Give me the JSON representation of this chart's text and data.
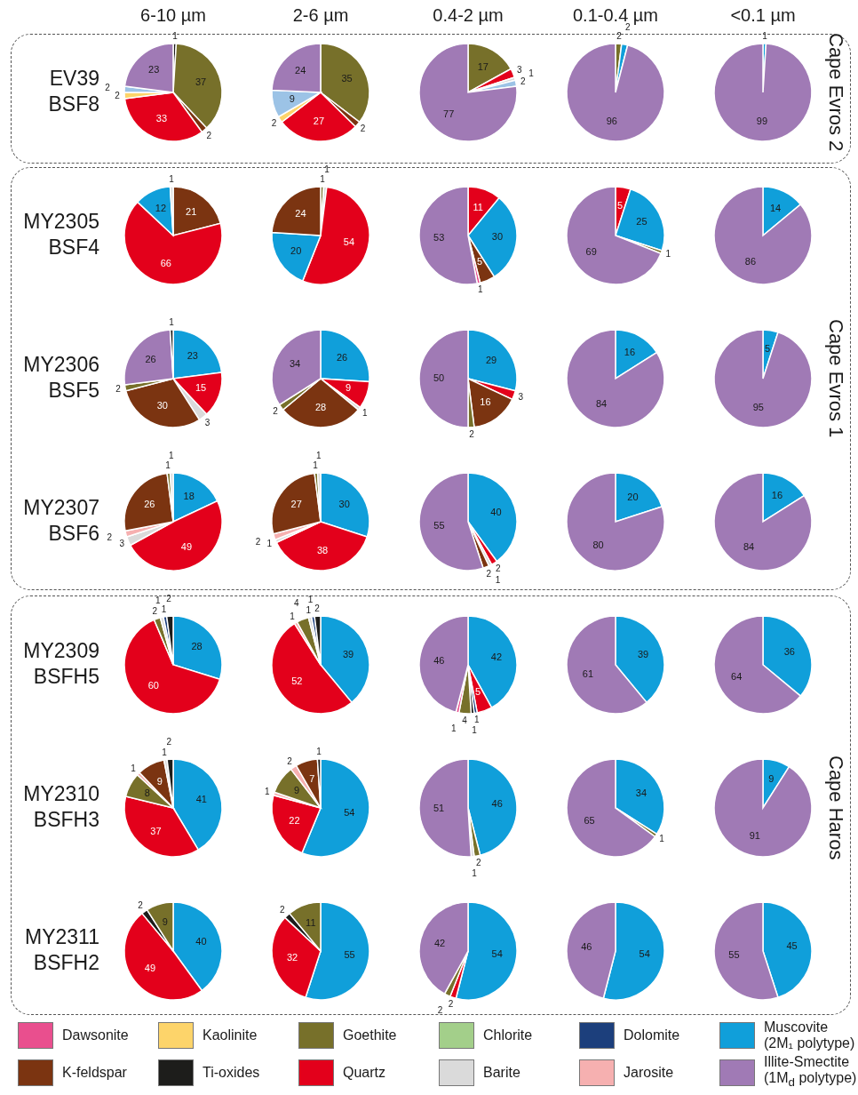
{
  "chart_data": [
    {
      "type": "pie",
      "title": "6-10 µm",
      "ylabel": "EV39\nBSF8",
      "data_labels": true,
      "categories": [
        null,
        null,
        null,
        null,
        null,
        null,
        null
      ],
      "values": [
        1,
        37,
        2,
        33,
        2,
        2,
        23
      ],
      "colors": [
        "#1d1d1b",
        "#77702a",
        "#7b3411",
        "#e3001b",
        "#fdd46a",
        "#9cc3e6",
        "#a07ab5"
      ]
    },
    {
      "type": "pie",
      "title": "2-6 µm",
      "data_labels": true,
      "categories": [
        null,
        null,
        null,
        null,
        null,
        null
      ],
      "values": [
        35,
        2,
        27,
        2,
        9,
        24
      ],
      "colors": [
        "#77702a",
        "#7b3411",
        "#e3001b",
        "#fdd46a",
        "#9cc3e6",
        "#a07ab5"
      ]
    },
    {
      "type": "pie",
      "title": "0.4-2 µm",
      "data_labels": true,
      "categories": [
        null,
        null,
        null,
        null,
        null
      ],
      "values": [
        17,
        3,
        1,
        2,
        77
      ],
      "colors": [
        "#77702a",
        "#e3001b",
        "#dadada",
        "#9cc3e6",
        "#a07ab5"
      ]
    },
    {
      "type": "pie",
      "title": "0.1-0.4 µm",
      "data_labels": true,
      "categories": [
        null,
        null,
        null
      ],
      "values": [
        2,
        2,
        96
      ],
      "colors": [
        "#77702a",
        "#109fda",
        "#a07ab5"
      ]
    },
    {
      "type": "pie",
      "title": "<0.1 µm",
      "annotations": [
        "Cape Evros 2"
      ],
      "data_labels": true,
      "categories": [
        null,
        null
      ],
      "values": [
        1,
        99
      ],
      "colors": [
        "#109fda",
        "#a07ab5"
      ]
    },
    {
      "type": "pie",
      "ylabel": "MY2305\nBSF4",
      "data_labels": true,
      "categories": [
        null,
        null,
        null,
        null
      ],
      "values": [
        21,
        66,
        12,
        1
      ],
      "colors": [
        "#7b3411",
        "#e3001b",
        "#109fda",
        "#dadada"
      ]
    },
    {
      "type": "pie",
      "data_labels": true,
      "categories": [
        null,
        null,
        null,
        null,
        null
      ],
      "values": [
        1,
        1,
        54,
        20,
        24
      ],
      "colors": [
        "#77702a",
        "#dadada",
        "#e3001b",
        "#109fda",
        "#7b3411"
      ]
    },
    {
      "type": "pie",
      "data_labels": true,
      "categories": [
        null,
        null,
        null,
        null,
        null
      ],
      "values": [
        11,
        30,
        5,
        1,
        53
      ],
      "colors": [
        "#e3001b",
        "#109fda",
        "#7b3411",
        "#e94f8e",
        "#a07ab5"
      ]
    },
    {
      "type": "pie",
      "data_labels": true,
      "categories": [
        null,
        null,
        null,
        null
      ],
      "values": [
        5,
        25,
        1,
        69
      ],
      "colors": [
        "#e3001b",
        "#109fda",
        "#77702a",
        "#a07ab5"
      ]
    },
    {
      "type": "pie",
      "data_labels": true,
      "categories": [
        null,
        null
      ],
      "values": [
        14,
        86
      ],
      "colors": [
        "#109fda",
        "#a07ab5"
      ]
    },
    {
      "type": "pie",
      "ylabel": "MY2306\nBSF5",
      "data_labels": true,
      "categories": [
        null,
        null,
        null,
        null,
        null,
        null,
        null
      ],
      "values": [
        23,
        15,
        3,
        30,
        2,
        26,
        1
      ],
      "colors": [
        "#109fda",
        "#e3001b",
        "#dadada",
        "#7b3411",
        "#77702a",
        "#a07ab5",
        "#1d1d1b"
      ]
    },
    {
      "type": "pie",
      "data_labels": true,
      "categories": [
        null,
        null,
        null,
        null,
        null,
        null
      ],
      "values": [
        26,
        9,
        1,
        28,
        2,
        34
      ],
      "colors": [
        "#109fda",
        "#e3001b",
        "#dadada",
        "#7b3411",
        "#77702a",
        "#a07ab5"
      ]
    },
    {
      "type": "pie",
      "data_labels": true,
      "categories": [
        null,
        null,
        null,
        null,
        null
      ],
      "values": [
        29,
        3,
        16,
        2,
        50
      ],
      "colors": [
        "#109fda",
        "#e3001b",
        "#7b3411",
        "#77702a",
        "#a07ab5"
      ]
    },
    {
      "type": "pie",
      "data_labels": true,
      "categories": [
        null,
        null
      ],
      "values": [
        16,
        84
      ],
      "colors": [
        "#109fda",
        "#a07ab5"
      ]
    },
    {
      "type": "pie",
      "annotations": [
        "Cape Evros 1"
      ],
      "data_labels": true,
      "categories": [
        null,
        null
      ],
      "values": [
        5,
        95
      ],
      "colors": [
        "#109fda",
        "#a07ab5"
      ]
    },
    {
      "type": "pie",
      "ylabel": "MY2307\nBSF6",
      "data_labels": true,
      "categories": [
        null,
        null,
        null,
        null,
        null,
        null,
        null
      ],
      "values": [
        18,
        49,
        3,
        2,
        26,
        1,
        1
      ],
      "colors": [
        "#109fda",
        "#e3001b",
        "#dadada",
        "#f6b0b0",
        "#7b3411",
        "#77702a",
        "#dadada"
      ]
    },
    {
      "type": "pie",
      "data_labels": true,
      "categories": [
        null,
        null,
        null,
        null,
        null,
        null,
        null
      ],
      "values": [
        30,
        38,
        1,
        2,
        27,
        1,
        1
      ],
      "colors": [
        "#109fda",
        "#e3001b",
        "#dadada",
        "#f6b0b0",
        "#7b3411",
        "#77702a",
        "#dadada"
      ]
    },
    {
      "type": "pie",
      "data_labels": true,
      "categories": [
        null,
        null,
        null,
        null,
        null
      ],
      "values": [
        40,
        2,
        1,
        2,
        55
      ],
      "colors": [
        "#109fda",
        "#e3001b",
        "#dadada",
        "#7b3411",
        "#a07ab5"
      ]
    },
    {
      "type": "pie",
      "data_labels": true,
      "categories": [
        null,
        null
      ],
      "values": [
        20,
        80
      ],
      "colors": [
        "#109fda",
        "#a07ab5"
      ]
    },
    {
      "type": "pie",
      "data_labels": true,
      "categories": [
        null,
        null
      ],
      "values": [
        16,
        84
      ],
      "colors": [
        "#109fda",
        "#a07ab5"
      ]
    },
    {
      "type": "pie",
      "ylabel": "MY2309\nBSFH5",
      "data_labels": true,
      "categories": [
        null,
        null,
        null,
        null,
        null,
        null
      ],
      "values": [
        28,
        60,
        2,
        1,
        1,
        2
      ],
      "colors": [
        "#109fda",
        "#e3001b",
        "#77702a",
        "#dadada",
        "#1c3f7c",
        "#1d1d1b"
      ]
    },
    {
      "type": "pie",
      "data_labels": true,
      "categories": [
        null,
        null,
        null,
        null,
        null,
        null,
        null
      ],
      "values": [
        39,
        52,
        1,
        4,
        1,
        1,
        2
      ],
      "colors": [
        "#109fda",
        "#e3001b",
        "#f6b0b0",
        "#77702a",
        "#dadada",
        "#1c3f7c",
        "#1d1d1b"
      ]
    },
    {
      "type": "pie",
      "data_labels": true,
      "categories": [
        null,
        null,
        null,
        null,
        null,
        null,
        null
      ],
      "values": [
        42,
        5,
        1,
        1,
        4,
        1,
        46
      ],
      "colors": [
        "#109fda",
        "#e3001b",
        "#1c3f7c",
        "#1d1d1b",
        "#77702a",
        "#e94f8e",
        "#a07ab5"
      ]
    },
    {
      "type": "pie",
      "data_labels": true,
      "categories": [
        null,
        null
      ],
      "values": [
        39,
        61
      ],
      "colors": [
        "#109fda",
        "#a07ab5"
      ]
    },
    {
      "type": "pie",
      "data_labels": true,
      "categories": [
        null,
        null
      ],
      "values": [
        36,
        64
      ],
      "colors": [
        "#109fda",
        "#a07ab5"
      ]
    },
    {
      "type": "pie",
      "ylabel": "MY2310\nBSFH3",
      "data_labels": true,
      "categories": [
        null,
        null,
        null,
        null,
        null,
        null,
        null
      ],
      "values": [
        41,
        37,
        8,
        1,
        9,
        1,
        2
      ],
      "colors": [
        "#109fda",
        "#e3001b",
        "#77702a",
        "#f6b0b0",
        "#7b3411",
        "#dadada",
        "#1d1d1b"
      ]
    },
    {
      "type": "pie",
      "data_labels": true,
      "categories": [
        null,
        null,
        null,
        null,
        null,
        null,
        null
      ],
      "values": [
        54,
        22,
        1,
        9,
        2,
        7,
        1
      ],
      "colors": [
        "#109fda",
        "#e3001b",
        "#f6b0b0",
        "#77702a",
        "#f6b0b0",
        "#7b3411",
        "#1d1d1b"
      ]
    },
    {
      "type": "pie",
      "data_labels": true,
      "categories": [
        null,
        null,
        null,
        null
      ],
      "values": [
        46,
        2,
        1,
        51
      ],
      "colors": [
        "#109fda",
        "#77702a",
        "#dadada",
        "#a07ab5"
      ]
    },
    {
      "type": "pie",
      "data_labels": true,
      "categories": [
        null,
        null,
        null
      ],
      "values": [
        34,
        1,
        65
      ],
      "colors": [
        "#109fda",
        "#77702a",
        "#a07ab5"
      ]
    },
    {
      "type": "pie",
      "annotations": [
        "Cape Haros"
      ],
      "data_labels": true,
      "categories": [
        null,
        null
      ],
      "values": [
        9,
        91
      ],
      "colors": [
        "#109fda",
        "#a07ab5"
      ]
    },
    {
      "type": "pie",
      "ylabel": "MY2311\nBSFH2",
      "data_labels": true,
      "categories": [
        null,
        null,
        null,
        null
      ],
      "values": [
        40,
        49,
        2,
        9
      ],
      "colors": [
        "#109fda",
        "#e3001b",
        "#1d1d1b",
        "#77702a"
      ]
    },
    {
      "type": "pie",
      "data_labels": true,
      "categories": [
        null,
        null,
        null,
        null
      ],
      "values": [
        55,
        32,
        2,
        11
      ],
      "colors": [
        "#109fda",
        "#e3001b",
        "#1d1d1b",
        "#77702a"
      ]
    },
    {
      "type": "pie",
      "data_labels": true,
      "categories": [
        null,
        null,
        null,
        null
      ],
      "values": [
        54,
        2,
        2,
        42
      ],
      "colors": [
        "#109fda",
        "#e3001b",
        "#77702a",
        "#a07ab5"
      ]
    },
    {
      "type": "pie",
      "data_labels": true,
      "categories": [
        null,
        null
      ],
      "values": [
        54,
        46
      ],
      "colors": [
        "#109fda",
        "#a07ab5"
      ]
    },
    {
      "type": "pie",
      "data_labels": true,
      "categories": [
        null,
        null
      ],
      "values": [
        45,
        55
      ],
      "colors": [
        "#109fda",
        "#a07ab5"
      ]
    },
    {
      "type": "other",
      "categories": [
        "Dawsonite",
        "Kaolinite",
        "Goethite",
        "Chlorite",
        "Dolomite",
        "Muscovite (2M₁ polytype)",
        "K-feldspar",
        "Ti-oxides",
        "Quartz",
        "Barite",
        "Jarosite",
        "Illite-Smectite (1M$_{d}$ polytype)"
      ],
      "colors": [
        "#e94f8e",
        "#fdd46a",
        "#77702a",
        "#a3cf8a",
        "#1c3f7c",
        "#109fda",
        "#7b3411",
        "#1d1d1b",
        "#e3001b",
        "#dadada",
        "#f6b0b0",
        "#a07ab5"
      ]
    }
  ]
}
